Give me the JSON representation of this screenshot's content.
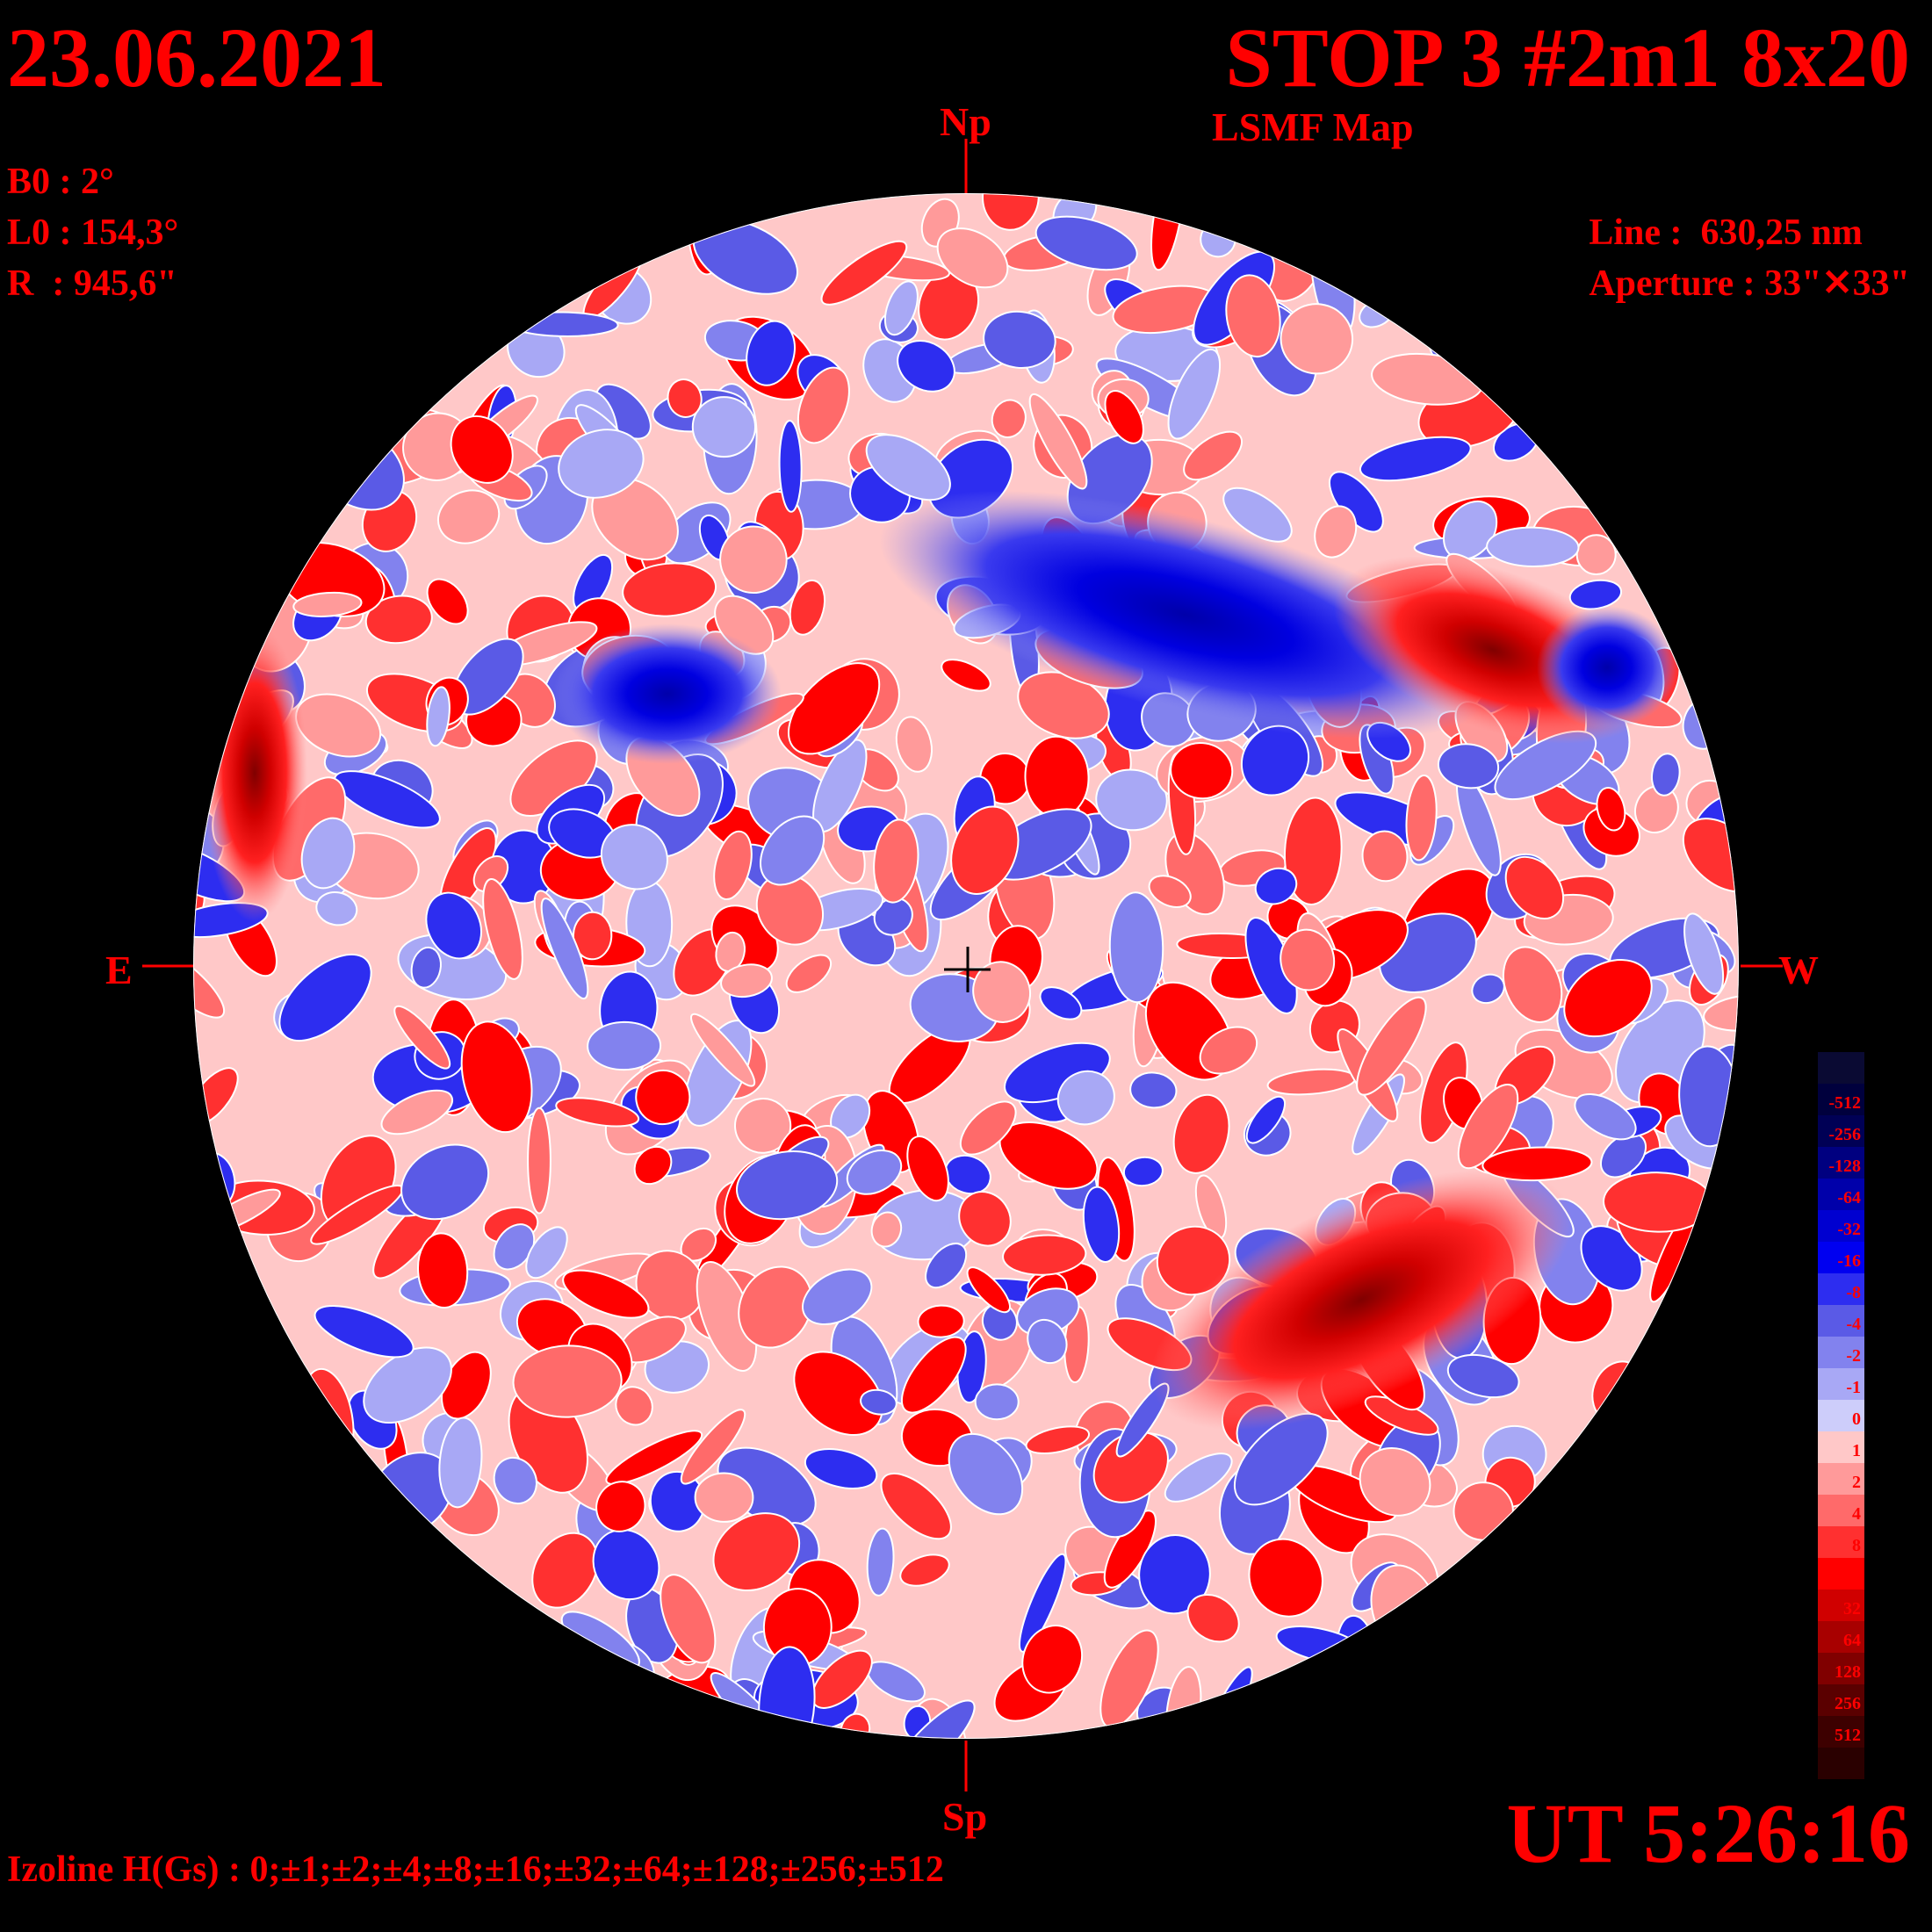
{
  "header": {
    "date": "23.06.2021",
    "title": "STOP 3 #2m1 8x20",
    "subtitle": "LSMF  Map"
  },
  "params": {
    "b0": "B0 : 2°",
    "l0": "L0 : 154,3°",
    "r": "R  : 945,6\""
  },
  "instrument": {
    "line": "Line :  630,25 nm",
    "aperture": "Aperture : 33\"✕33\""
  },
  "axes": {
    "north": "Np",
    "south": "Sp",
    "east": "E",
    "west": "W"
  },
  "time": "UT 5:26:16",
  "izoline": "Izoline H(Gs) : 0;±1;±2;±4;±8;±16;±32;±64;±128;±256;±512",
  "colorbar": {
    "levels": [
      {
        "label": "",
        "color": "#0a0a33"
      },
      {
        "label": "-512",
        "color": "#00003d"
      },
      {
        "label": "-256",
        "color": "#000055"
      },
      {
        "label": "-128",
        "color": "#000080"
      },
      {
        "label": "-64",
        "color": "#0000aa"
      },
      {
        "label": "-32",
        "color": "#0000d0"
      },
      {
        "label": "-16",
        "color": "#0000f0"
      },
      {
        "label": "-8",
        "color": "#2d2df0"
      },
      {
        "label": "-4",
        "color": "#5a5ae6"
      },
      {
        "label": "-2",
        "color": "#8282ee"
      },
      {
        "label": "-1",
        "color": "#a8a8f5"
      },
      {
        "label": "0",
        "color": "#cdcdfa"
      },
      {
        "label": "1",
        "color": "#ffc8c8"
      },
      {
        "label": "2",
        "color": "#ff9a9a"
      },
      {
        "label": "4",
        "color": "#ff6a6a"
      },
      {
        "label": "8",
        "color": "#ff3030"
      },
      {
        "label": "16",
        "color": "#ff0000"
      },
      {
        "label": "32",
        "color": "#d00000"
      },
      {
        "label": "64",
        "color": "#a80000"
      },
      {
        "label": "128",
        "color": "#800000"
      },
      {
        "label": "256",
        "color": "#5a0000"
      },
      {
        "label": "512",
        "color": "#3d0000"
      },
      {
        "label": "",
        "color": "#2a0000"
      }
    ]
  }
}
